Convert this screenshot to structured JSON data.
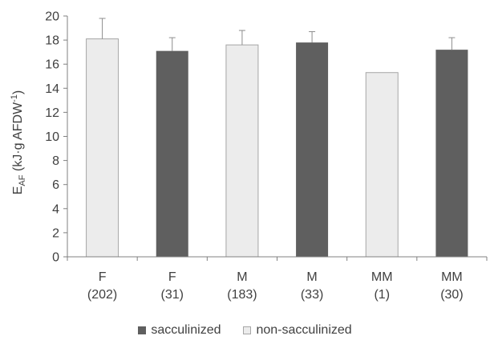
{
  "chart_data": {
    "type": "bar",
    "categories": [
      {
        "line1": "F",
        "line2": "(202)"
      },
      {
        "line1": "F",
        "line2": "(31)"
      },
      {
        "line1": "M",
        "line2": "(183)"
      },
      {
        "line1": "M",
        "line2": "(33)"
      },
      {
        "line1": "MM",
        "line2": "(1)"
      },
      {
        "line1": "MM",
        "line2": "(30)"
      }
    ],
    "values": [
      18.1,
      17.1,
      17.6,
      17.8,
      15.3,
      17.2
    ],
    "error_up": [
      1.7,
      1.1,
      1.2,
      0.9,
      0,
      1.0
    ],
    "groups": [
      "non-sacculinized",
      "sacculinized",
      "non-sacculinized",
      "sacculinized",
      "non-sacculinized",
      "sacculinized"
    ],
    "ylabel_main": "E",
    "ylabel_sub": "AF",
    "ylabel_rest": " (kJ·g AFDW",
    "ylabel_sup": "-1",
    "ylabel_close": ")",
    "ylim": [
      0,
      20
    ],
    "yticks": [
      "0",
      "2",
      "4",
      "6",
      "8",
      "10",
      "12",
      "14",
      "16",
      "18",
      "20"
    ],
    "grid": false,
    "legend_position": "bottom",
    "legend": [
      {
        "label": "sacculinized",
        "color": "#5f5f5f"
      },
      {
        "label": "non-sacculinized",
        "color": "#ececec"
      }
    ],
    "colors": {
      "sacculinized": "#5f5f5f",
      "non-sacculinized": "#ececec",
      "bar_edge": "#a6a6a6",
      "axis": "#808080"
    }
  }
}
